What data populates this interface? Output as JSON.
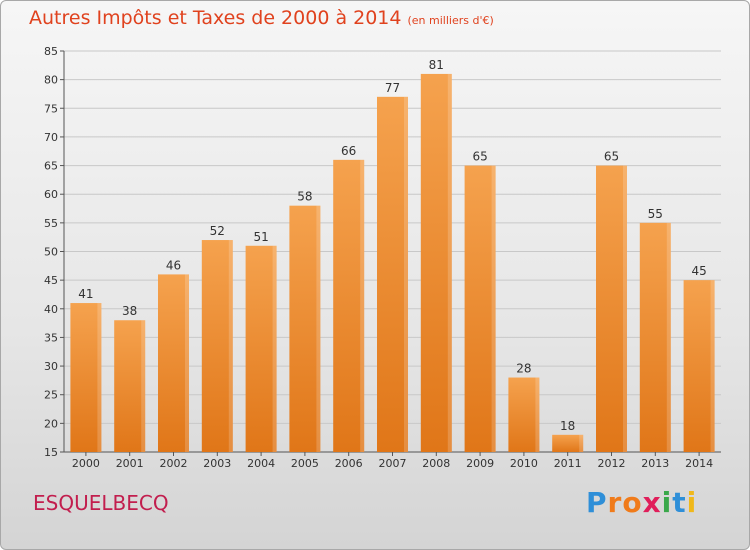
{
  "title": "Autres Impôts et Taxes de 2000 à 2014",
  "subtitle": "(en milliers d'€)",
  "town": "ESQUELBECQ",
  "logo": {
    "letters": [
      "P",
      "r",
      "o",
      "x",
      "i",
      "t",
      "i"
    ],
    "colors": [
      "#2f8fd8",
      "#f07b1a",
      "#f07b1a",
      "#e01e5a",
      "#3aa84a",
      "#2f8fd8",
      "#f0b81a"
    ]
  },
  "colors": {
    "bar_top": "#f5a24e",
    "bar_bottom": "#e07618",
    "title": "#e0421e",
    "town": "#c21e4e"
  },
  "chart_data": {
    "type": "bar",
    "title": "Autres Impôts et Taxes de 2000 à 2014",
    "subtitle": "(en milliers d'€)",
    "categories": [
      "2000",
      "2001",
      "2002",
      "2003",
      "2004",
      "2005",
      "2006",
      "2007",
      "2008",
      "2009",
      "2010",
      "2011",
      "2012",
      "2013",
      "2014"
    ],
    "values": [
      41,
      38,
      46,
      52,
      51,
      58,
      66,
      77,
      81,
      65,
      28,
      18,
      65,
      55,
      45
    ],
    "ylim": [
      15,
      85
    ],
    "yticks": [
      15,
      20,
      25,
      30,
      35,
      40,
      45,
      50,
      55,
      60,
      65,
      70,
      75,
      80,
      85
    ],
    "grid": true,
    "xlabel": "",
    "ylabel": ""
  }
}
